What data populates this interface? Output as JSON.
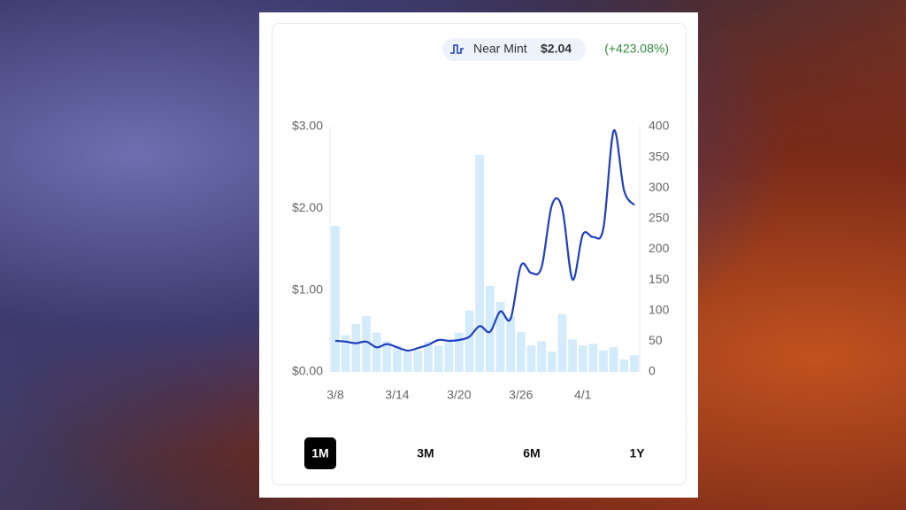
{
  "chart_data": {
    "type": "price_volume",
    "legend": {
      "name": "Near Mint",
      "latest": {
        "value": 2.04,
        "label": "$2.04"
      },
      "change": {
        "value": 423.08,
        "label": "(+423.08%)"
      }
    },
    "categories": [
      "3/8",
      null,
      null,
      null,
      null,
      null,
      "3/14",
      null,
      null,
      null,
      null,
      null,
      "3/20",
      null,
      null,
      null,
      null,
      null,
      "3/26",
      null,
      null,
      null,
      null,
      null,
      "4/1",
      null,
      null,
      null,
      null,
      null
    ],
    "series": [
      {
        "name": "Near Mint",
        "color": "#1f3fbf",
        "kind": "line",
        "axis": "y",
        "values": [
          0.38,
          0.37,
          0.35,
          0.37,
          0.3,
          0.34,
          0.3,
          0.26,
          0.29,
          0.33,
          0.39,
          0.38,
          0.39,
          0.43,
          0.56,
          0.49,
          0.74,
          0.65,
          1.3,
          1.21,
          1.28,
          2.04,
          2.0,
          1.13,
          1.68,
          1.65,
          1.76,
          2.95,
          2.22,
          2.04
        ]
      },
      {
        "color": "#d3ebfb",
        "kind": "bar",
        "axis": "y2",
        "values": [
          238,
          60,
          78,
          91,
          64,
          50,
          43,
          32,
          35,
          49,
          43,
          49,
          64,
          100,
          354,
          140,
          114,
          90,
          65,
          43,
          50,
          33,
          94,
          53,
          43,
          46,
          35,
          40,
          20,
          27
        ]
      }
    ],
    "ylim": [
      0,
      3
    ],
    "yticks": [
      {
        "value": 0,
        "label": "$0.00"
      },
      {
        "value": 1,
        "label": "$1.00"
      },
      {
        "value": 2,
        "label": "$2.00"
      },
      {
        "value": 3,
        "label": "$3.00"
      }
    ],
    "y2lim": [
      0,
      400
    ],
    "y2ticks": [
      0,
      50,
      100,
      150,
      200,
      250,
      300,
      350,
      400
    ]
  },
  "ranges": {
    "options": [
      "1M",
      "3M",
      "6M",
      "1Y"
    ],
    "selected": 0
  }
}
